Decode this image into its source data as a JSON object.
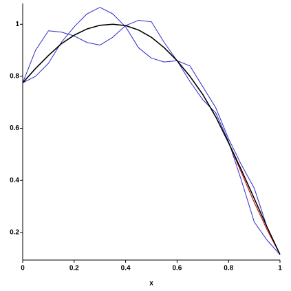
{
  "chart_data": {
    "type": "line",
    "x_label": "x",
    "x": [
      0,
      0.05,
      0.1,
      0.15,
      0.2,
      0.25,
      0.3,
      0.35,
      0.4,
      0.45,
      0.5,
      0.55,
      0.6,
      0.65,
      0.7,
      0.75,
      0.8,
      0.85,
      0.9,
      0.95,
      1
    ],
    "series": [
      {
        "color": "#2b2bc8",
        "values": [
          0.775,
          0.9,
          0.975,
          0.97,
          0.955,
          0.93,
          0.92,
          0.95,
          0.995,
          1.015,
          1.01,
          0.93,
          0.86,
          0.78,
          0.71,
          0.66,
          0.55,
          0.4,
          0.24,
          0.17,
          0.115
        ]
      },
      {
        "color": "#2b2bc8",
        "values": [
          0.775,
          0.8,
          0.85,
          0.93,
          0.99,
          1.04,
          1.065,
          1.04,
          0.99,
          0.91,
          0.87,
          0.855,
          0.86,
          0.84,
          0.76,
          0.68,
          0.56,
          0.46,
          0.37,
          0.22,
          0.115
        ]
      },
      {
        "color": "#cc0000",
        "values": [
          0.775,
          0.83,
          0.88,
          0.925,
          0.958,
          0.982,
          0.996,
          1.0,
          0.995,
          0.978,
          0.95,
          0.91,
          0.86,
          0.8,
          0.73,
          0.645,
          0.545,
          0.43,
          0.315,
          0.21,
          0.115
        ]
      },
      {
        "color": "#000000",
        "values": [
          0.775,
          0.83,
          0.88,
          0.925,
          0.958,
          0.982,
          0.996,
          1.0,
          0.995,
          0.978,
          0.95,
          0.91,
          0.86,
          0.8,
          0.73,
          0.645,
          0.545,
          0.44,
          0.33,
          0.22,
          0.115
        ]
      }
    ],
    "xlim": [
      0,
      1
    ],
    "xticks": [
      0,
      0.2,
      0.4,
      0.6,
      0.8,
      1
    ],
    "ylim": [
      0.094,
      1.08
    ],
    "yticks": [
      0.2,
      0.4,
      0.6,
      0.8,
      1
    ]
  }
}
